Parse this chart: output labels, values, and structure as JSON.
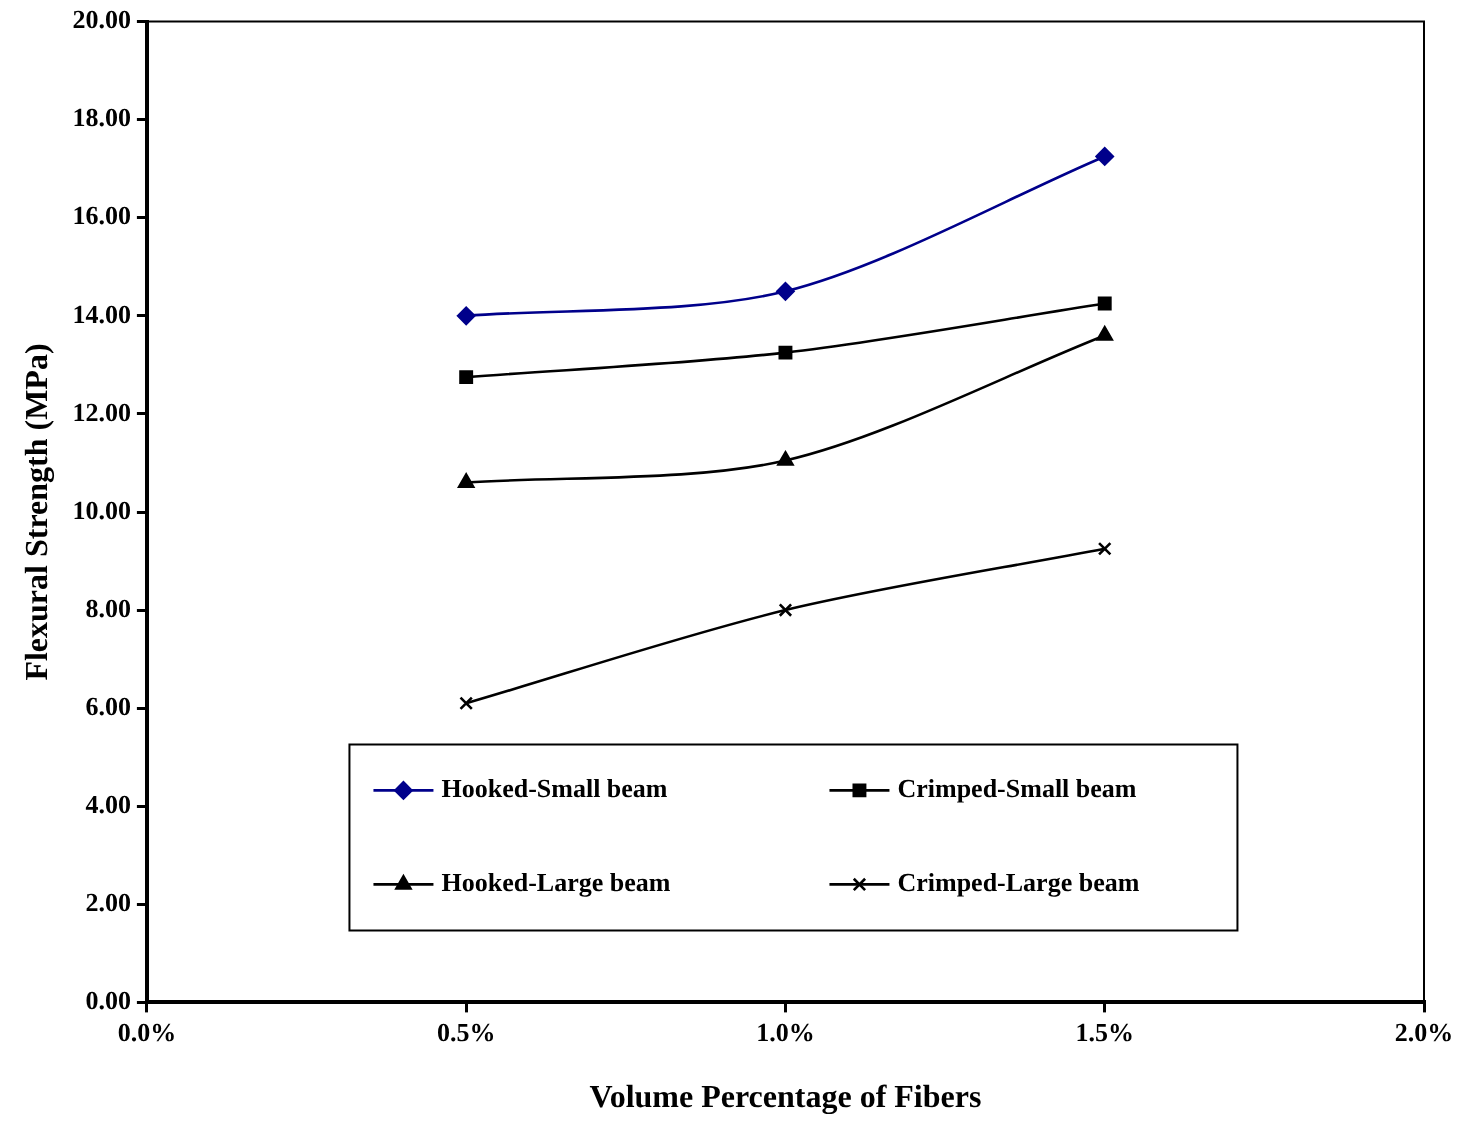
{
  "chart_data": {
    "type": "line",
    "xlabel": "Volume Percentage of Fibers",
    "ylabel": "Flexural Strength (MPa)",
    "x": [
      0.5,
      1.0,
      1.5
    ],
    "series": [
      {
        "name": "Hooked-Small beam",
        "color": "#00008b",
        "marker": "diamond",
        "values": [
          14.0,
          14.5,
          17.25
        ]
      },
      {
        "name": "Crimped-Small beam",
        "color": "#000000",
        "marker": "square",
        "values": [
          12.75,
          13.25,
          14.25
        ]
      },
      {
        "name": "Hooked-Large beam",
        "color": "#000000",
        "marker": "triangle",
        "values": [
          10.6,
          11.05,
          13.6
        ]
      },
      {
        "name": "Crimped-Large beam",
        "color": "#000000",
        "marker": "cross",
        "values": [
          6.1,
          8.0,
          9.25
        ]
      }
    ],
    "xlim": [
      0,
      2
    ],
    "xticks": [
      {
        "value": 0,
        "label": "0.0%"
      },
      {
        "value": 0.5,
        "label": "0.5%"
      },
      {
        "value": 1,
        "label": "1.0%"
      },
      {
        "value": 1.5,
        "label": "1.5%"
      },
      {
        "value": 2,
        "label": "2.0%"
      }
    ],
    "ylim": [
      0,
      20
    ],
    "yticks": [
      {
        "value": 0,
        "label": "0.00"
      },
      {
        "value": 2,
        "label": "2.00"
      },
      {
        "value": 4,
        "label": "4.00"
      },
      {
        "value": 6,
        "label": "6.00"
      },
      {
        "value": 8,
        "label": "8.00"
      },
      {
        "value": 10,
        "label": "10.00"
      },
      {
        "value": 12,
        "label": "12.00"
      },
      {
        "value": 14,
        "label": "14.00"
      },
      {
        "value": 16,
        "label": "16.00"
      },
      {
        "value": 18,
        "label": "18.00"
      },
      {
        "value": 20,
        "label": "20.00"
      }
    ],
    "grid": false,
    "legend": "bottom"
  }
}
